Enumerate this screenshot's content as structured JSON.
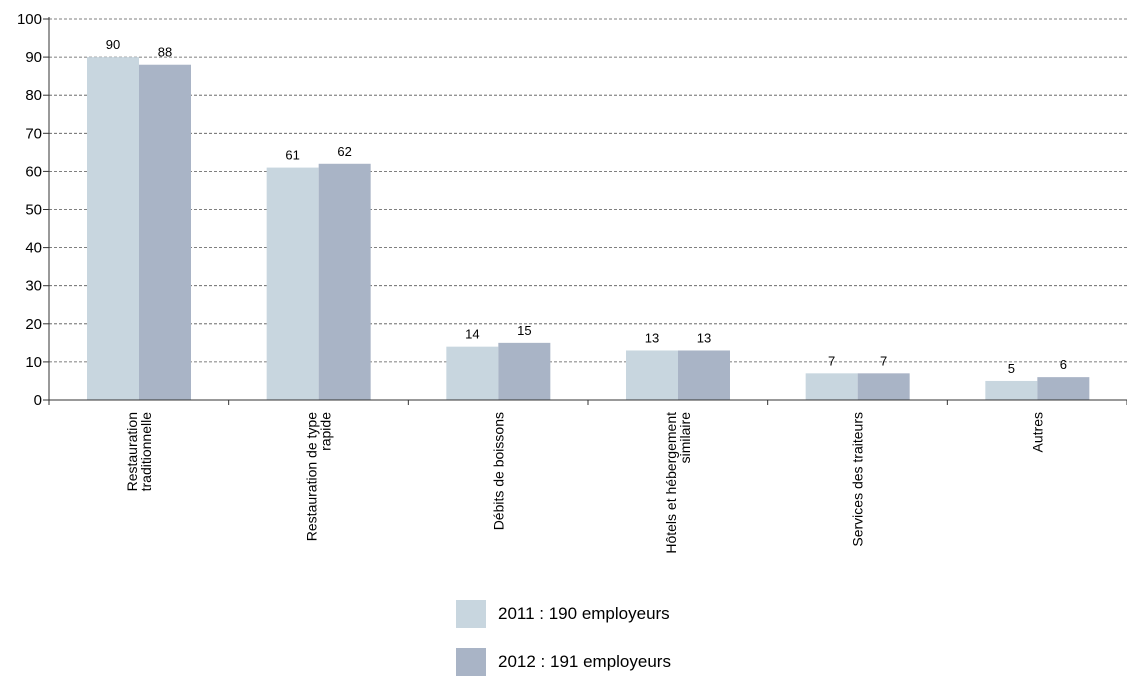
{
  "chart_data": {
    "type": "bar",
    "categories": [
      [
        "Restauration",
        "traditionnelle"
      ],
      [
        "Restauration de type",
        "rapide"
      ],
      [
        "Débits de boissons"
      ],
      [
        "Hôtels et hébergement",
        "similaire"
      ],
      [
        "Services des traiteurs"
      ],
      [
        "Autres"
      ]
    ],
    "series": [
      {
        "name": "2011 : 190 employeurs",
        "color": "#c8d6df",
        "values": [
          90,
          61,
          14,
          13,
          7,
          5
        ]
      },
      {
        "name": "2012 : 191 employeurs",
        "color": "#a9b4c6",
        "values": [
          88,
          62,
          15,
          13,
          7,
          6
        ]
      }
    ],
    "ylim": [
      0,
      100
    ],
    "yticks": [
      0,
      10,
      20,
      30,
      40,
      50,
      60,
      70,
      80,
      90,
      100
    ],
    "grid": true,
    "grid_style": "dashed",
    "data_labels": true,
    "legend_position": "bottom"
  }
}
